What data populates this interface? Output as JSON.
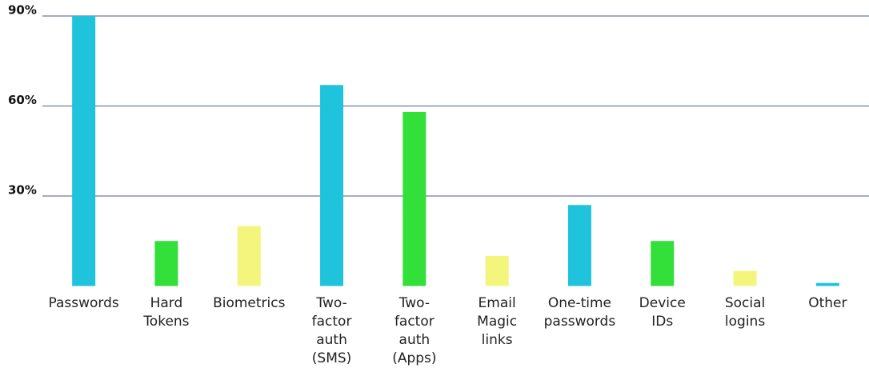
{
  "chart_data": {
    "type": "bar",
    "categories": [
      "Passwords",
      "Hard Tokens",
      "Biometrics",
      "Two-factor auth (SMS)",
      "Two-factor auth (Apps)",
      "Email Magic links",
      "One-time passwords",
      "Device IDs",
      "Social logins",
      "Other"
    ],
    "values": [
      90,
      15,
      20,
      67,
      58,
      10,
      27,
      15,
      5,
      1
    ],
    "colors": [
      "#1fc4dc",
      "#33e03a",
      "#f4f57c",
      "#1fc4dc",
      "#33e03a",
      "#f4f57c",
      "#1fc4dc",
      "#33e03a",
      "#f4f57c",
      "#1fc4dc"
    ],
    "ylim": [
      0,
      90
    ],
    "yticks": [
      {
        "value": 30,
        "label": "30%"
      },
      {
        "value": 60,
        "label": "60%"
      },
      {
        "value": 90,
        "label": "90%"
      }
    ],
    "grid": true
  }
}
